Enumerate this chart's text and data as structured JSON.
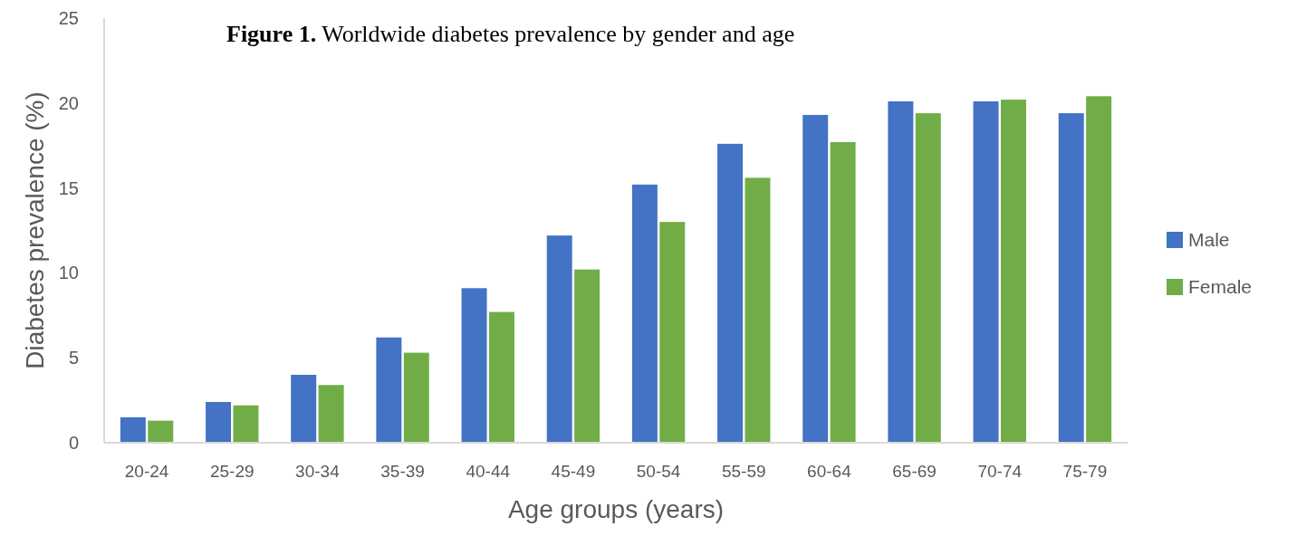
{
  "chart_data": {
    "type": "bar",
    "title": "Figure 1. Worldwide diabetes prevalence by gender and age",
    "xlabel": "Age groups (years)",
    "ylabel": "Diabetes prevalence (%)",
    "categories": [
      "20-24",
      "25-29",
      "30-34",
      "35-39",
      "40-44",
      "45-49",
      "50-54",
      "55-59",
      "60-64",
      "65-69",
      "70-74",
      "75-79"
    ],
    "series": [
      {
        "name": "Male",
        "color": "#4472c4",
        "values": [
          1.5,
          2.4,
          4.0,
          6.2,
          9.1,
          12.2,
          15.2,
          17.6,
          19.3,
          20.1,
          20.1,
          19.4
        ]
      },
      {
        "name": "Female",
        "color": "#70ad47",
        "values": [
          1.3,
          2.2,
          3.4,
          5.3,
          7.7,
          10.2,
          13.0,
          15.6,
          17.7,
          19.4,
          20.2,
          20.4
        ]
      }
    ],
    "ylim": [
      0,
      25
    ],
    "yticks": [
      0,
      5,
      10,
      15,
      20,
      25
    ],
    "grid": false,
    "legend": "right"
  }
}
